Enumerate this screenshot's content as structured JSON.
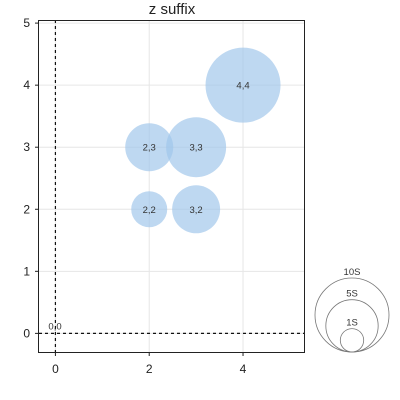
{
  "chart_data": {
    "type": "bubble",
    "title": "z suffix",
    "xlabel": "",
    "ylabel": "",
    "xlim": [
      -0.35,
      5.3
    ],
    "ylim": [
      -0.3,
      5.05
    ],
    "x_ticks": [
      0,
      2,
      4
    ],
    "y_ticks": [
      0,
      1,
      2,
      3,
      4,
      5
    ],
    "grid": true,
    "reference_lines": {
      "x": 0,
      "y": 0,
      "label": "0,0"
    },
    "points": [
      {
        "x": 2,
        "y": 2,
        "size": 6,
        "label": "2,2"
      },
      {
        "x": 3,
        "y": 2,
        "size": 8,
        "label": "3,2"
      },
      {
        "x": 2,
        "y": 3,
        "size": 8,
        "label": "2,3"
      },
      {
        "x": 3,
        "y": 3,
        "size": 10,
        "label": "3,3"
      },
      {
        "x": 4,
        "y": 4,
        "size": 12.5,
        "label": "4,4"
      }
    ],
    "size_legend": [
      {
        "label": "10S",
        "value": 10
      },
      {
        "label": "5S",
        "value": 5
      },
      {
        "label": "1S",
        "value": 1
      }
    ],
    "legend_position": "bottom-right",
    "bubble_color": "#9fc5ea",
    "text_color": "#222222"
  }
}
